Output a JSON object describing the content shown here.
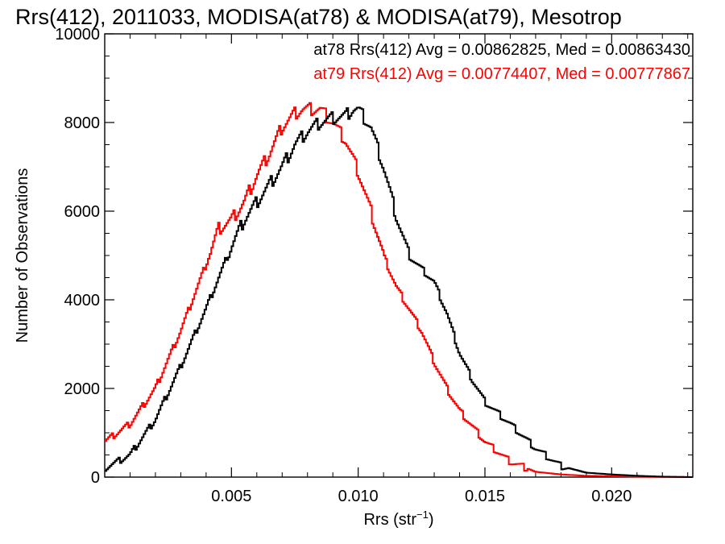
{
  "chart_data": {
    "type": "line",
    "title": "Rrs(412), 2011033, MODISA(at78) & MODISA(at79), Mesotrop",
    "xlabel": "Rrs (str",
    "xlabel_sup": "−1",
    "xlabel_close": ")",
    "ylabel": "Number of Observations",
    "xlim": [
      0.0,
      0.0232
    ],
    "ylim": [
      0,
      10000
    ],
    "x_ticks": [
      0.005,
      0.01,
      0.015,
      0.02
    ],
    "x_tick_labels": [
      "0.005",
      "0.010",
      "0.015",
      "0.020"
    ],
    "y_ticks": [
      0,
      2000,
      4000,
      6000,
      8000,
      10000
    ],
    "y_tick_labels": [
      "0",
      "2000",
      "4000",
      "6000",
      "8000",
      "10000"
    ],
    "grid": false,
    "legend_position": "top-right",
    "legend": [
      {
        "text": "at78 Rrs(412) Avg = 0.00862825, Med = 0.00863430",
        "color": "#000000"
      },
      {
        "text": "at79 Rrs(412) Avg = 0.00774407, Med = 0.00777867",
        "color": "#ff0000"
      }
    ],
    "series": [
      {
        "color": "#000000",
        "x": [
          0.0,
          0.001,
          0.002,
          0.003,
          0.004,
          0.005,
          0.0055,
          0.006,
          0.0065,
          0.007,
          0.0075,
          0.008,
          0.0085,
          0.009,
          0.0095,
          0.0098,
          0.01,
          0.0105,
          0.011,
          0.0115,
          0.012,
          0.0125,
          0.013,
          0.0135,
          0.014,
          0.0145,
          0.015,
          0.016,
          0.017,
          0.018,
          0.019,
          0.02,
          0.021,
          0.022,
          0.0232
        ],
        "values": [
          200,
          500,
          1300,
          2500,
          3800,
          5200,
          5800,
          6200,
          6600,
          7000,
          7500,
          7800,
          8000,
          8100,
          8150,
          8300,
          8300,
          7900,
          7000,
          5900,
          5000,
          4700,
          4400,
          3700,
          2800,
          2200,
          1700,
          1200,
          650,
          250,
          100,
          60,
          30,
          10,
          0
        ]
      },
      {
        "color": "#ff0000",
        "x": [
          0.0,
          0.001,
          0.002,
          0.003,
          0.004,
          0.0045,
          0.005,
          0.0055,
          0.006,
          0.0065,
          0.007,
          0.0075,
          0.0078,
          0.008,
          0.0085,
          0.009,
          0.0095,
          0.01,
          0.0105,
          0.011,
          0.0115,
          0.012,
          0.0125,
          0.013,
          0.0135,
          0.014,
          0.015,
          0.016,
          0.017,
          0.018,
          0.019,
          0.02,
          0.021,
          0.022,
          0.0232
        ],
        "values": [
          800,
          1200,
          2000,
          3300,
          4800,
          5600,
          5800,
          6200,
          6800,
          7300,
          7900,
          8200,
          8300,
          8300,
          8300,
          8000,
          7600,
          6900,
          6000,
          5000,
          4300,
          3800,
          3300,
          2600,
          2000,
          1500,
          800,
          350,
          120,
          60,
          30,
          20,
          10,
          5,
          0
        ]
      }
    ]
  }
}
